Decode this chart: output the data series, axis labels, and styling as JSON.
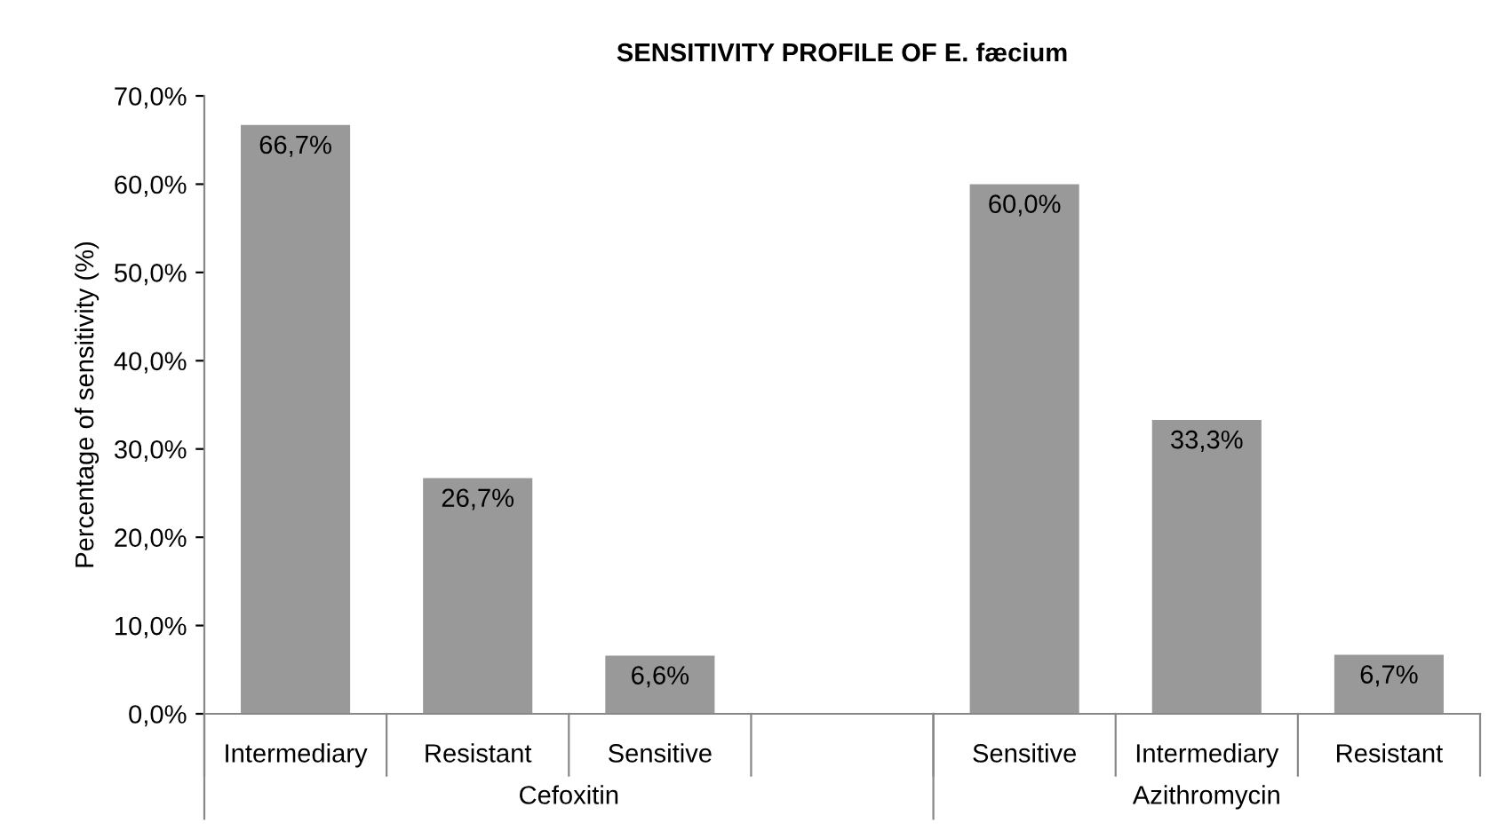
{
  "chart_data": {
    "type": "bar",
    "title": "SENSITIVITY PROFILE OF E. fæcium",
    "ylabel": "Percentage of sensitivity (%)",
    "categories": [
      "Intermediary",
      "Resistant",
      "Sensitive",
      null,
      "Sensitive",
      "Intermediary",
      "Resistant"
    ],
    "values": [
      66.7,
      26.7,
      6.6,
      null,
      60.0,
      33.3,
      6.7
    ],
    "value_labels": [
      "66,7%",
      "26,7%",
      "6,6%",
      null,
      "60,0%",
      "33,3%",
      "6,7%"
    ],
    "color": "#999999",
    "ylim": [
      0,
      70
    ],
    "yticks": [
      {
        "value": 0,
        "label": "0,0%"
      },
      {
        "value": 10,
        "label": "10,0%"
      },
      {
        "value": 20,
        "label": "20,0%"
      },
      {
        "value": 30,
        "label": "30,0%"
      },
      {
        "value": 40,
        "label": "40,0%"
      },
      {
        "value": 50,
        "label": "50,0%"
      },
      {
        "value": 60,
        "label": "60,0%"
      },
      {
        "value": 70,
        "label": "70,0%"
      }
    ],
    "annotations": [
      "Cefoxitin",
      "Azithromycin"
    ],
    "grid": false,
    "legend": false
  }
}
